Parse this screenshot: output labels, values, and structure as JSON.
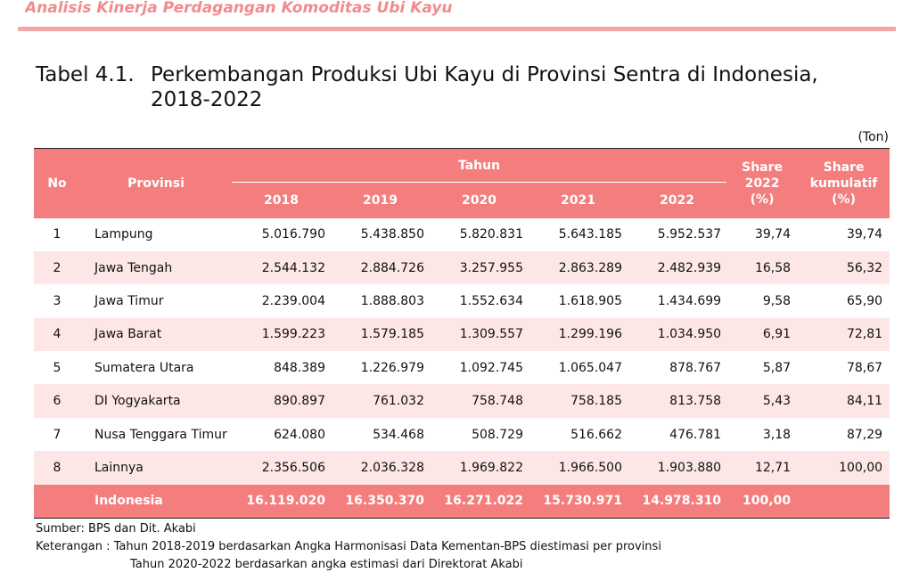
{
  "header": {
    "running_title": "Analisis Kinerja Perdagangan Komoditas Ubi Kayu"
  },
  "caption": {
    "label": "Tabel 4.1.",
    "line1": "Perkembangan Produksi Ubi Kayu di Provinsi Sentra di Indonesia,",
    "line2": "2018-2022"
  },
  "unit": "(Ton)",
  "table": {
    "headers": {
      "no": "No",
      "province": "Provinsi",
      "year_group": "Tahun",
      "years": [
        "2018",
        "2019",
        "2020",
        "2021",
        "2022"
      ],
      "share_2022": [
        "Share",
        "2022",
        "(%)"
      ],
      "share_cumulative": [
        "Share",
        "kumulatif",
        "(%)"
      ]
    },
    "rows": [
      {
        "no": "1",
        "province": "Lampung",
        "values": [
          "5.016.790",
          "5.438.850",
          "5.820.831",
          "5.643.185",
          "5.952.537"
        ],
        "share": "39,74",
        "cumulative": "39,74"
      },
      {
        "no": "2",
        "province": "Jawa Tengah",
        "values": [
          "2.544.132",
          "2.884.726",
          "3.257.955",
          "2.863.289",
          "2.482.939"
        ],
        "share": "16,58",
        "cumulative": "56,32"
      },
      {
        "no": "3",
        "province": "Jawa Timur",
        "values": [
          "2.239.004",
          "1.888.803",
          "1.552.634",
          "1.618.905",
          "1.434.699"
        ],
        "share": "9,58",
        "cumulative": "65,90"
      },
      {
        "no": "4",
        "province": "Jawa Barat",
        "values": [
          "1.599.223",
          "1.579.185",
          "1.309.557",
          "1.299.196",
          "1.034.950"
        ],
        "share": "6,91",
        "cumulative": "72,81"
      },
      {
        "no": "5",
        "province": "Sumatera Utara",
        "values": [
          "848.389",
          "1.226.979",
          "1.092.745",
          "1.065.047",
          "878.767"
        ],
        "share": "5,87",
        "cumulative": "78,67"
      },
      {
        "no": "6",
        "province": "DI Yogyakarta",
        "values": [
          "890.897",
          "761.032",
          "758.748",
          "758.185",
          "813.758"
        ],
        "share": "5,43",
        "cumulative": "84,11"
      },
      {
        "no": "7",
        "province": "Nusa Tenggara Timur",
        "values": [
          "624.080",
          "534.468",
          "508.729",
          "516.662",
          "476.781"
        ],
        "share": "3,18",
        "cumulative": "87,29"
      },
      {
        "no": "8",
        "province": "Lainnya",
        "values": [
          "2.356.506",
          "2.036.328",
          "1.969.822",
          "1.966.500",
          "1.903.880"
        ],
        "share": "12,71",
        "cumulative": "100,00"
      }
    ],
    "total": {
      "label": "Indonesia",
      "values": [
        "16.119.020",
        "16.350.370",
        "16.271.022",
        "15.730.971",
        "14.978.310"
      ],
      "share": "100,00",
      "cumulative": ""
    }
  },
  "notes": {
    "source": "Sumber: BPS dan Dit. Akabi",
    "remark_label": "Keterangan : ",
    "remark_line1": "Tahun 2018-2019 berdasarkan Angka Harmonisasi Data Kementan-BPS diestimasi per provinsi",
    "remark_line2": "Tahun 2020-2022 berdasarkan angka estimasi dari Direktorat Akabi"
  },
  "colors": {
    "header_fill": "#f47d7d",
    "alt_row_fill": "#fde6e6",
    "running_title": "#f28b8b",
    "rule": "#f4a5a5"
  }
}
